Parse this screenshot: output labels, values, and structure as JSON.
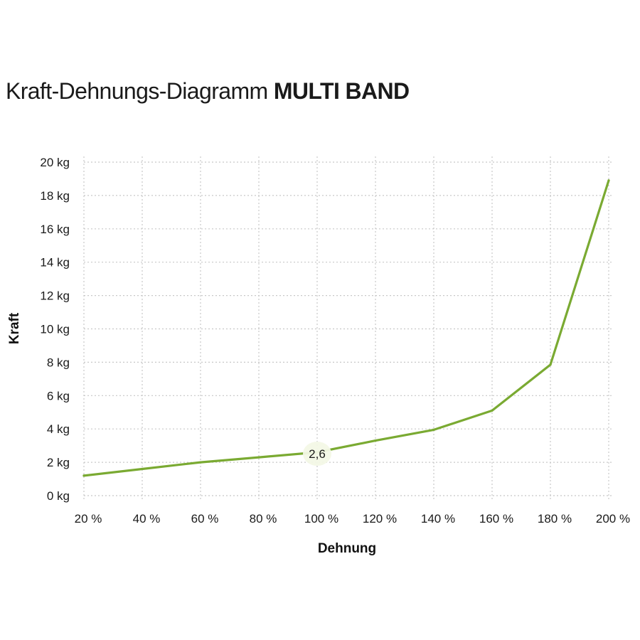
{
  "title": {
    "regular": "Kraft-Dehnungs-Diagramm",
    "bold": "MULTI BAND"
  },
  "colors": {
    "line": "#7aaa32",
    "grid": "#c8c8c8",
    "text": "#1a1a1a"
  },
  "chart_data": {
    "type": "line",
    "xlabel": "Dehnung",
    "ylabel": "Kraft",
    "x": [
      20,
      40,
      60,
      80,
      100,
      120,
      140,
      160,
      180,
      200
    ],
    "x_tick_labels": [
      "20 %",
      "40 %",
      "60 %",
      "80 %",
      "100 %",
      "120 %",
      "140 %",
      "160 %",
      "180 %",
      "200 %"
    ],
    "xlim": [
      20,
      200
    ],
    "y_tick_values": [
      0,
      2,
      4,
      6,
      8,
      10,
      12,
      14,
      16,
      18,
      20
    ],
    "y_tick_labels": [
      "0 kg",
      "2 kg",
      "4 kg",
      "6 kg",
      "8 kg",
      "10 kg",
      "12 kg",
      "14 kg",
      "16 kg",
      "18 kg",
      "20 kg"
    ],
    "ylim": [
      0,
      20
    ],
    "grid": true,
    "series": [
      {
        "values": [
          1.2,
          1.6,
          2.0,
          2.3,
          2.6,
          3.3,
          3.95,
          5.1,
          7.85,
          18.9
        ]
      }
    ],
    "annotations": [
      {
        "x": 100,
        "y": 2.6,
        "text": "2,6"
      }
    ]
  }
}
